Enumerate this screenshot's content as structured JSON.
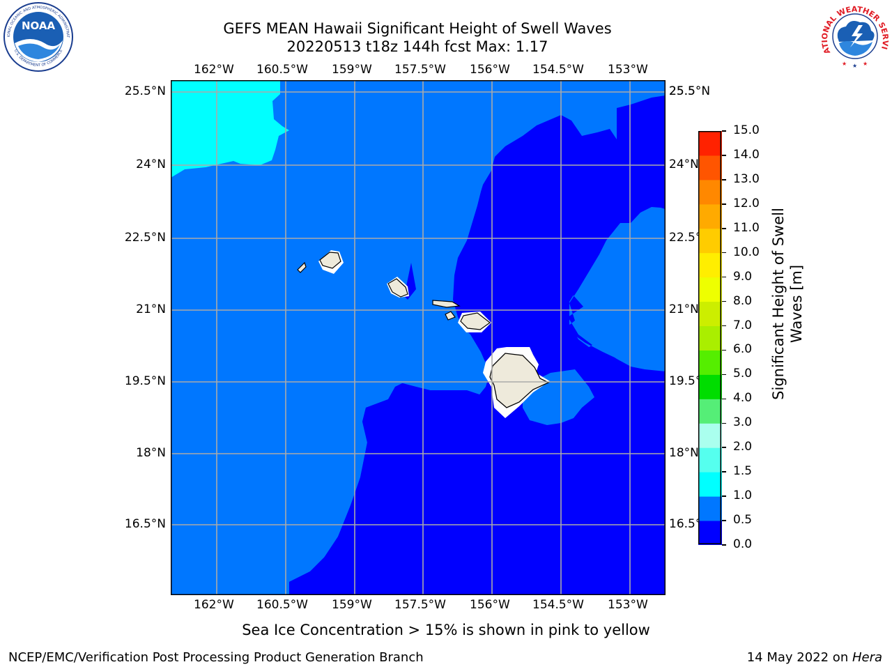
{
  "header": {
    "title_line1": "GEFS MEAN Hawaii Significant Height of Swell Waves",
    "title_line2": "20220513 t18z 144h fcst   Max: 1.17"
  },
  "logos": {
    "noaa_text": "NOAA",
    "noaa_ring_top": "NATIONAL OCEANIC AND ATMOSPHERIC ADMINISTRATION",
    "noaa_ring_bottom": "U.S. DEPARTMENT OF COMMERCE",
    "nws_ring": "NATIONAL WEATHER SERVICE"
  },
  "map": {
    "lon_labels": [
      "162°W",
      "160.5°W",
      "159°W",
      "157.5°W",
      "156°W",
      "154.5°W",
      "153°W"
    ],
    "lat_labels": [
      "25.5°N",
      "24°N",
      "22.5°N",
      "21°N",
      "19.5°N",
      "18°N",
      "16.5°N"
    ],
    "colors": {
      "band_0_0.5": "#0000ff",
      "band_0.5_1.0": "#0077ff",
      "band_1.0_1.5": "#00ffff",
      "land": "#eeeadb",
      "grid": "#aaaaaa"
    }
  },
  "colorbar": {
    "label_line1": "Significant Height of Swell",
    "label_line2": "Waves [m]",
    "ticks": [
      "0.0",
      "0.5",
      "1.0",
      "1.5",
      "2.0",
      "3.0",
      "4.0",
      "5.0",
      "6.0",
      "7.0",
      "8.0",
      "9.0",
      "10.0",
      "11.0",
      "12.0",
      "13.0",
      "14.0",
      "15.0"
    ],
    "colors": [
      "#0000ff",
      "#0077ff",
      "#00ffff",
      "#55ffee",
      "#aaffee",
      "#55ee77",
      "#00dd00",
      "#55ee00",
      "#aaee00",
      "#ccee00",
      "#eeff00",
      "#ffee00",
      "#ffcc00",
      "#ffaa00",
      "#ff8800",
      "#ff5500",
      "#ff2200",
      "#ff0000"
    ]
  },
  "notes": {
    "sea_ice": "Sea Ice Concentration > 15% is shown in pink to yellow"
  },
  "footer": {
    "left": "NCEP/EMC/Verification Post Processing Product Generation Branch",
    "right_prefix": "14 May 2022 on ",
    "right_host": "Hera"
  }
}
